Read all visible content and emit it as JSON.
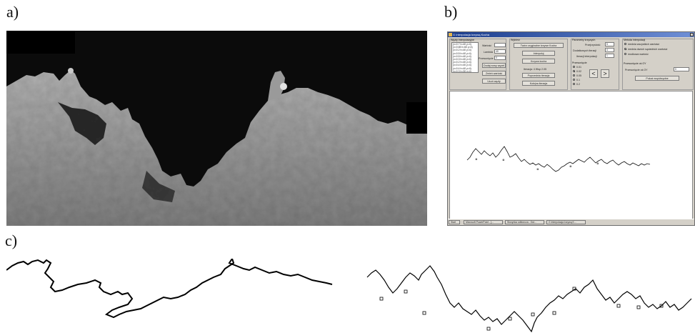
{
  "labels": {
    "a": "a)",
    "b": "b)",
    "c": "c)"
  },
  "app": {
    "title": "G Interpolacja krzywą Kocha",
    "groups": {
      "nodes": "Węzły interpolacyjne",
      "choice": "Wybierz",
      "curve_params": "Parametry krzywych",
      "method": "Metoda interpolacji",
      "scale": "Przesunięcie",
      "shift_oy": "Przesunięcie oś OY"
    },
    "node_list": [
      "(x=0.7  h=40  y=4)",
      "(x=0.65  h=60  y=4)",
      "(x=0.2  h=40  y=4)",
      "(x=0.5  h=40  y=4)",
      "(x=0.5  h=40  y=4)",
      "(x=0.3  h=40  y=4)",
      "(x=0.2  h=40  y=4)",
      "(x=0.4  h=40  y=4)",
      "(x=0.4  h=40  y=4)",
      "(x=0.3  h=30  y=4)"
    ],
    "fields": {
      "value_label": "Wartość",
      "lambda_label": "Lambda",
      "lambda_value": "40",
      "shift_label": "Przesunięcie",
      "shift_value": "0"
    },
    "buttons": {
      "add_node": "Dodaj nowy węzeł",
      "change_value": "Zmień wartość",
      "delete_nodes": "Usuń węzły",
      "create_koch": "Twórz oryginalne krzywe Kocha",
      "interpolate": "Interpoluj",
      "koch_curve": "Krzywa kocha",
      "prev_iteration": "Poprzednia iteracja",
      "next_iteration": "Kolejna iteracja",
      "draw_coords": "Pokaż współrzędne"
    },
    "iteration_text": "Iteracja: 4   Wsp 2.05",
    "params": {
      "distance_label": "Przejrzystość",
      "distance_value": "5",
      "extra_iter_label": "Dodatkowych iteracji",
      "extra_iter_value": "4",
      "interp_iter_label": "Iteracji interpolacji",
      "interp_iter_value": "1"
    },
    "scale_options": [
      "0.01",
      "0.02",
      "0.05",
      "0.1",
      "0.2"
    ],
    "scale_selected": 1,
    "method_options": [
      "średnia wszystkich wartości",
      "średnia dwóch sąsiednich wartości",
      "środkowa wartość"
    ],
    "method_selected": 1,
    "shift_oy_label": "Przesunięcie oś OY",
    "shift_oy_value": "0",
    "arrow_left": "<",
    "arrow_right": ">",
    "taskbar": [
      "Start",
      "Microsoft PowerPoint - [...",
      "Skrzynka odbiorcza - Out...",
      "G Interpolacja krzywą K..."
    ]
  }
}
